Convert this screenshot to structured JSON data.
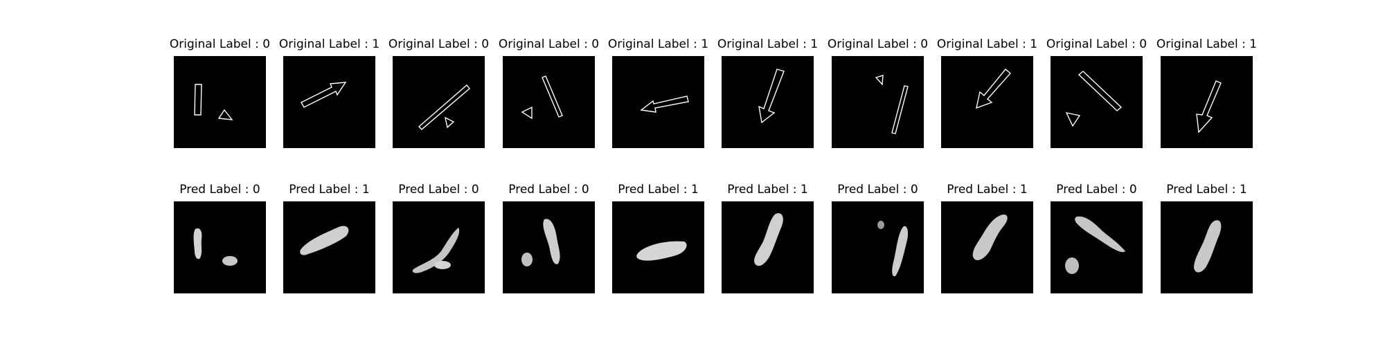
{
  "figure": {
    "rows": [
      {
        "kind": "original",
        "titles": [
          "Original Label : 0",
          "Original Label : 1",
          "Original Label : 0",
          "Original Label : 0",
          "Original Label : 1",
          "Original Label : 1",
          "Original Label : 0",
          "Original Label : 1",
          "Original Label : 0",
          "Original Label : 1"
        ]
      },
      {
        "kind": "pred",
        "titles": [
          "Pred Label : 0",
          "Pred Label : 1",
          "Pred Label : 0",
          "Pred Label : 0",
          "Pred Label : 1",
          "Pred Label : 1",
          "Pred Label : 0",
          "Pred Label : 1",
          "Pred Label : 0",
          "Pred Label : 1"
        ]
      }
    ],
    "labels": [
      0,
      1,
      0,
      0,
      1,
      1,
      0,
      1,
      0,
      1
    ],
    "colors": {
      "background": "#000000",
      "stroke": "#ffffff",
      "blob": "#cfcfcf"
    }
  }
}
